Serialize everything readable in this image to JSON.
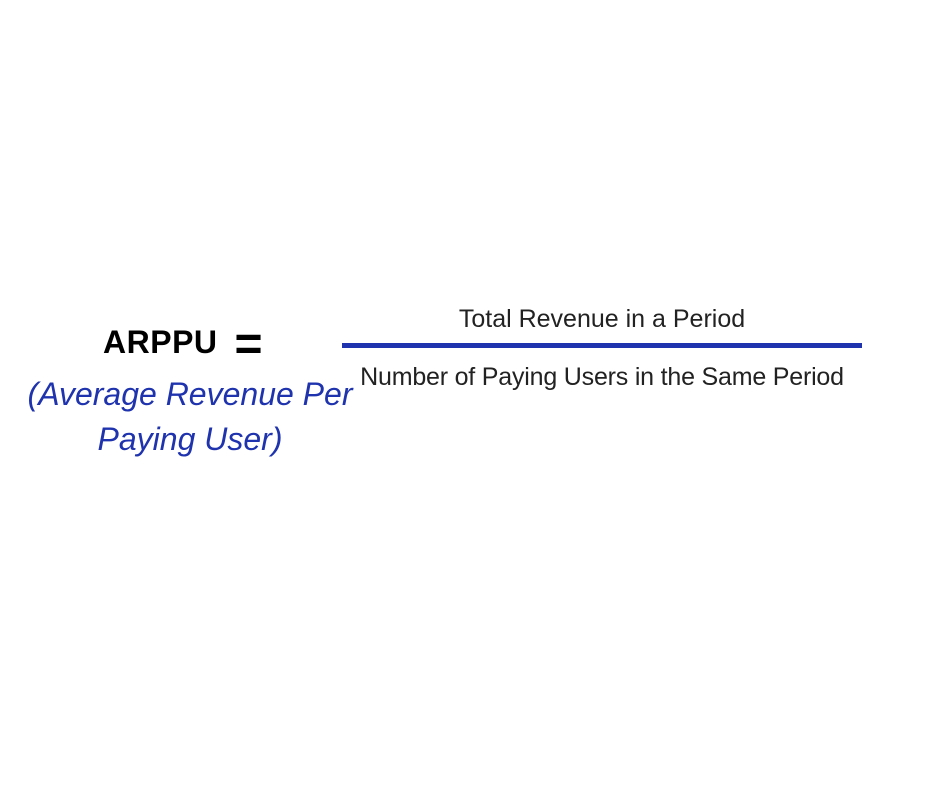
{
  "graphic": {
    "term": "ARPPU",
    "equals": "=",
    "definition_lines": [
      "(Average Revenue Per",
      "Paying User)"
    ],
    "numerator": "Total Revenue in a Period",
    "denominator": "Number of Paying Users in the Same Period"
  },
  "colors": {
    "accent_blue": "#1E33AD",
    "term_black": "#000000",
    "fraction_text": "#222222",
    "background": "#FFFFFF"
  }
}
